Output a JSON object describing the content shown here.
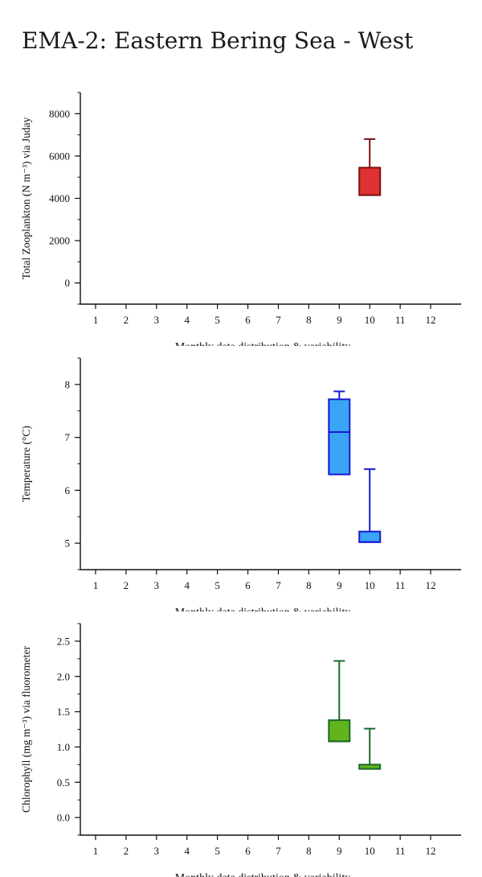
{
  "page": {
    "title": "EMA-2: Eastern Bering Sea - West"
  },
  "chart_data": [
    {
      "type": "box",
      "ylabel": "Total Zooplankton (N m⁻³) via Juday",
      "xlabel": "Monthly data distribution & variability",
      "categories": [
        "1",
        "2",
        "3",
        "4",
        "5",
        "6",
        "7",
        "8",
        "9",
        "10",
        "11",
        "12"
      ],
      "ylim": [
        -1000,
        9000
      ],
      "yticks": [
        0,
        2000,
        4000,
        6000,
        8000
      ],
      "ytick_labels": [
        "0",
        "2000",
        "4000",
        "6000",
        "8000"
      ],
      "minor_step": 1000,
      "fill": "#e03232",
      "stroke": "#7a0f0f",
      "boxes": [
        {
          "month": 10,
          "q1": 4150,
          "median": 4150,
          "q3": 5450,
          "whisker_low": 4150,
          "whisker_high": 6800
        }
      ]
    },
    {
      "type": "box",
      "ylabel": "Temperature (°C)",
      "xlabel": "Monthly data distribution & variability",
      "categories": [
        "1",
        "2",
        "3",
        "4",
        "5",
        "6",
        "7",
        "8",
        "9",
        "10",
        "11",
        "12"
      ],
      "ylim": [
        4.5,
        8.5
      ],
      "yticks": [
        5,
        6,
        7,
        8
      ],
      "ytick_labels": [
        "5",
        "6",
        "7",
        "8"
      ],
      "minor_step": 0.5,
      "fill": "#3aa5f5",
      "stroke": "#1a1ad0",
      "boxes": [
        {
          "month": 9,
          "q1": 6.3,
          "median": 7.1,
          "q3": 7.72,
          "whisker_low": 6.3,
          "whisker_high": 7.87
        },
        {
          "month": 10,
          "q1": 5.02,
          "median": 5.02,
          "q3": 5.22,
          "whisker_low": 5.02,
          "whisker_high": 6.4
        }
      ]
    },
    {
      "type": "box",
      "ylabel": "Chlorophyll (mg m⁻³) via fluorometer",
      "xlabel": "Monthly data distribution & variability",
      "categories": [
        "1",
        "2",
        "3",
        "4",
        "5",
        "6",
        "7",
        "8",
        "9",
        "10",
        "11",
        "12"
      ],
      "ylim": [
        -0.25,
        2.75
      ],
      "yticks": [
        0,
        0.5,
        1,
        1.5,
        2,
        2.5
      ],
      "ytick_labels": [
        "0.0",
        "0.5",
        "1.0",
        "1.5",
        "2.0",
        "2.5"
      ],
      "minor_step": 0.25,
      "fill": "#62b41e",
      "stroke": "#1a6a2a",
      "boxes": [
        {
          "month": 9,
          "q1": 1.08,
          "median": 1.08,
          "q3": 1.38,
          "whisker_low": 1.08,
          "whisker_high": 2.22
        },
        {
          "month": 10,
          "q1": 0.69,
          "median": 0.69,
          "q3": 0.75,
          "whisker_low": 0.69,
          "whisker_high": 1.26
        }
      ]
    }
  ]
}
